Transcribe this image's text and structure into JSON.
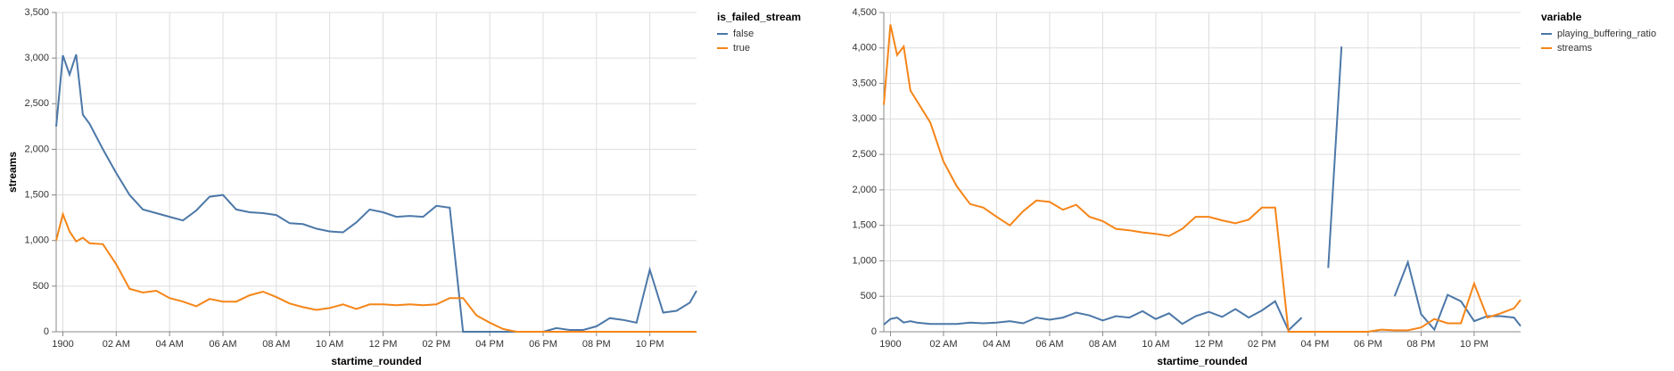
{
  "chart_data": [
    {
      "type": "line",
      "xlabel": "startime_rounded",
      "ylabel": "streams",
      "legend_title": "is_failed_stream",
      "legend": "right",
      "grid": true,
      "x": [
        -0.25,
        0,
        0.25,
        0.5,
        0.75,
        1,
        1.5,
        2,
        2.5,
        3,
        3.5,
        4,
        4.5,
        5,
        5.5,
        6,
        6.5,
        7,
        7.5,
        8,
        8.5,
        9,
        9.5,
        10,
        10.5,
        11,
        11.5,
        12,
        12.5,
        13,
        13.5,
        14,
        14.5,
        15,
        15.5,
        16,
        16.5,
        17,
        17.5,
        18,
        18.5,
        19,
        19.5,
        20,
        20.5,
        21,
        21.5,
        22,
        22.5,
        23,
        23.5,
        23.75
      ],
      "xlim": [
        -0.25,
        23.75
      ],
      "xticks": [
        {
          "value": 0,
          "label": "1900"
        },
        {
          "value": 2,
          "label": "02 AM"
        },
        {
          "value": 4,
          "label": "04 AM"
        },
        {
          "value": 6,
          "label": "06 AM"
        },
        {
          "value": 8,
          "label": "08 AM"
        },
        {
          "value": 10,
          "label": "10 AM"
        },
        {
          "value": 12,
          "label": "12 PM"
        },
        {
          "value": 14,
          "label": "02 PM"
        },
        {
          "value": 16,
          "label": "04 PM"
        },
        {
          "value": 18,
          "label": "06 PM"
        },
        {
          "value": 20,
          "label": "08 PM"
        },
        {
          "value": 22,
          "label": "10 PM"
        }
      ],
      "ylim": [
        0,
        3500
      ],
      "yticks": [
        0,
        500,
        {
          "value": 1000,
          "label": "1,000"
        },
        {
          "value": 1500,
          "label": "1,500"
        },
        {
          "value": 2000,
          "label": "2,000"
        },
        {
          "value": 2500,
          "label": "2,500"
        },
        {
          "value": 3000,
          "label": "3,000"
        },
        {
          "value": 3500,
          "label": "3,500"
        }
      ],
      "series": [
        {
          "name": "false",
          "color": "#4c78a8",
          "values": [
            2250,
            3030,
            2820,
            3040,
            2380,
            2280,
            2000,
            1740,
            1500,
            1340,
            1300,
            1260,
            1220,
            1330,
            1480,
            1500,
            1340,
            1310,
            1300,
            1280,
            1190,
            1180,
            1130,
            1100,
            1090,
            1200,
            1340,
            1310,
            1260,
            1270,
            1260,
            1380,
            1360,
            0,
            0,
            0,
            0,
            0,
            0,
            0,
            40,
            20,
            20,
            60,
            150,
            130,
            100,
            680,
            210,
            230,
            320,
            450
          ]
        },
        {
          "name": "true",
          "color": "#f58518",
          "values": [
            1000,
            1290,
            1100,
            990,
            1030,
            970,
            960,
            740,
            470,
            430,
            450,
            370,
            330,
            280,
            360,
            330,
            330,
            400,
            440,
            380,
            310,
            270,
            240,
            260,
            300,
            250,
            300,
            300,
            290,
            300,
            290,
            300,
            370,
            370,
            180,
            100,
            30,
            0,
            0,
            0,
            0,
            0,
            0,
            0,
            0,
            0,
            0,
            0,
            0,
            0,
            0,
            0
          ]
        }
      ]
    },
    {
      "type": "line",
      "xlabel": "startime_rounded",
      "legend_title": "variable",
      "legend": "right",
      "grid": true,
      "x": [
        -0.25,
        0,
        0.25,
        0.5,
        0.75,
        1,
        1.5,
        2,
        2.5,
        3,
        3.5,
        4,
        4.5,
        5,
        5.5,
        6,
        6.5,
        7,
        7.5,
        8,
        8.5,
        9,
        9.5,
        10,
        10.5,
        11,
        11.5,
        12,
        12.5,
        13,
        13.5,
        14,
        14.5,
        15,
        15.5,
        16,
        16.5,
        17,
        17.5,
        18,
        18.5,
        19,
        19.5,
        20,
        20.5,
        21,
        21.5,
        22,
        22.5,
        23,
        23.5,
        23.75
      ],
      "xlim": [
        -0.25,
        23.75
      ],
      "xticks": [
        {
          "value": 0,
          "label": "1900"
        },
        {
          "value": 2,
          "label": "02 AM"
        },
        {
          "value": 4,
          "label": "04 AM"
        },
        {
          "value": 6,
          "label": "06 AM"
        },
        {
          "value": 8,
          "label": "08 AM"
        },
        {
          "value": 10,
          "label": "10 AM"
        },
        {
          "value": 12,
          "label": "12 PM"
        },
        {
          "value": 14,
          "label": "02 PM"
        },
        {
          "value": 16,
          "label": "04 PM"
        },
        {
          "value": 18,
          "label": "06 PM"
        },
        {
          "value": 20,
          "label": "08 PM"
        },
        {
          "value": 22,
          "label": "10 PM"
        }
      ],
      "ylim": [
        0,
        4500
      ],
      "yticks": [
        0,
        500,
        {
          "value": 1000,
          "label": "1,000"
        },
        {
          "value": 1500,
          "label": "1,500"
        },
        {
          "value": 2000,
          "label": "2,000"
        },
        {
          "value": 2500,
          "label": "2,500"
        },
        {
          "value": 3000,
          "label": "3,000"
        },
        {
          "value": 3500,
          "label": "3,500"
        },
        {
          "value": 4000,
          "label": "4,000"
        },
        {
          "value": 4500,
          "label": "4,500"
        }
      ],
      "series": [
        {
          "name": "playing_buffering_ratio",
          "color": "#4c78a8",
          "values": [
            100,
            180,
            200,
            130,
            150,
            130,
            110,
            110,
            110,
            130,
            120,
            130,
            150,
            120,
            200,
            170,
            200,
            270,
            230,
            160,
            220,
            200,
            290,
            180,
            260,
            110,
            220,
            280,
            210,
            320,
            200,
            300,
            430,
            20,
            200,
            null,
            900,
            4020,
            null,
            null,
            null,
            500,
            980,
            250,
            30,
            520,
            430,
            150,
            220,
            220,
            200,
            80
          ]
        },
        {
          "name": "streams",
          "color": "#f58518",
          "values": [
            3200,
            4330,
            3900,
            4020,
            3400,
            3250,
            2950,
            2400,
            2050,
            1800,
            1750,
            1620,
            1500,
            1700,
            1850,
            1830,
            1720,
            1790,
            1620,
            1560,
            1450,
            1430,
            1400,
            1380,
            1350,
            1450,
            1620,
            1620,
            1570,
            1530,
            1580,
            1750,
            1750,
            0,
            0,
            0,
            0,
            0,
            0,
            0,
            30,
            20,
            20,
            60,
            180,
            120,
            120,
            680,
            200,
            260,
            330,
            450
          ]
        }
      ]
    }
  ]
}
